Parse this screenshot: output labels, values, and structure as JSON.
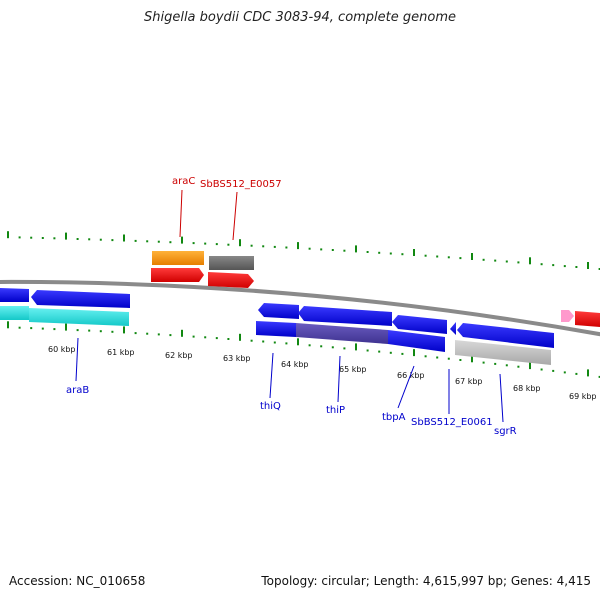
{
  "title": "Shigella boydii CDC 3083-94, complete genome",
  "footer": {
    "accession": "Accession: NC_010658",
    "summary": "Topology: circular; Length: 4,615,997 bp; Genes: 4,415"
  },
  "ticks": [
    "60 kbp",
    "61 kbp",
    "62 kbp",
    "63 kbp",
    "64 kbp",
    "65 kbp",
    "66 kbp",
    "67 kbp",
    "68 kbp",
    "69 kbp"
  ],
  "top_labels": [
    "araC",
    "SbBS512_E0057"
  ],
  "bottom_labels": [
    "araB",
    "thiQ",
    "thiP",
    "tbpA",
    "SbBS512_E0061",
    "sgrR"
  ],
  "colors": {
    "forward_label": "#cc0000",
    "reverse_label": "#0000cc",
    "backbone": "#888888",
    "tick": "#118811",
    "gene_blue": "#0a0af0",
    "gene_red": "#ee0000",
    "gene_orange": "#ff9900",
    "gene_gray": "#666666",
    "gene_cyan": "#22dddd",
    "gene_silver": "#bbbbbb",
    "gene_pink": "#ff99cc",
    "gene_purple": "#5544aa"
  }
}
